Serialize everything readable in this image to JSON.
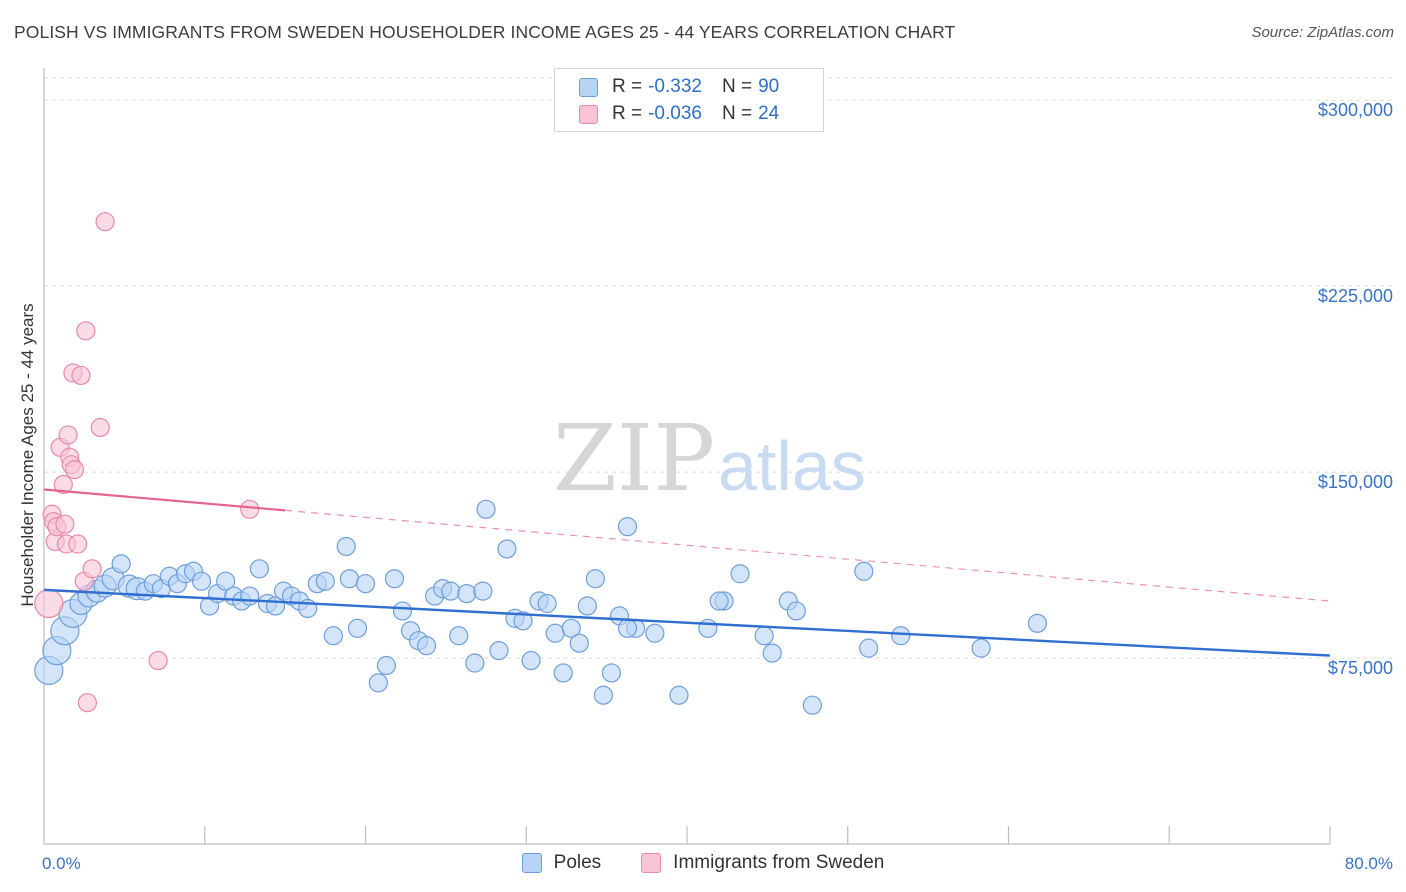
{
  "title": "POLISH VS IMMIGRANTS FROM SWEDEN HOUSEHOLDER INCOME AGES 25 - 44 YEARS CORRELATION CHART",
  "source": "Source: ZipAtlas.com",
  "watermark": {
    "zip": "ZIP",
    "atlas": "atlas"
  },
  "legend": {
    "rows": [
      {
        "r_label": "R =",
        "r_value": "-0.332",
        "n_label": "N =",
        "n_value": "90"
      },
      {
        "r_label": "R =",
        "r_value": "-0.036",
        "n_label": "N =",
        "n_value": "24"
      }
    ]
  },
  "colors": {
    "poles_fill": "#b7d3f5",
    "poles_stroke": "#6f9fdb",
    "poles_line": "#2f6fcf",
    "sweden_fill": "#f9c4d6",
    "sweden_stroke": "#e88aaa",
    "sweden_line": "#e3648e"
  },
  "chart_data": {
    "type": "scatter",
    "title": "POLISH VS IMMIGRANTS FROM SWEDEN HOUSEHOLDER INCOME AGES 25 - 44 YEARS CORRELATION CHART",
    "xlabel": "",
    "ylabel": "Householder Income Ages 25 - 44 years",
    "xlim": [
      0,
      80
    ],
    "ylim": [
      0,
      313000
    ],
    "x_tick_labels": [
      "0.0%",
      "80.0%"
    ],
    "y_ticks": [
      75000,
      150000,
      225000,
      300000
    ],
    "y_tick_labels": [
      "$75,000",
      "$150,000",
      "$225,000",
      "$300,000"
    ],
    "grid": true,
    "legend_position": "bottom-center",
    "series": [
      {
        "name": "Poles",
        "R": -0.332,
        "N": 90,
        "trend": {
          "x": [
            0,
            80
          ],
          "y": [
            102500,
            76000
          ]
        },
        "points": [
          [
            0.3,
            70000,
            2
          ],
          [
            0.8,
            78000,
            2
          ],
          [
            1.3,
            86000,
            2
          ],
          [
            1.8,
            93000,
            2
          ],
          [
            2.3,
            97000,
            1
          ],
          [
            2.8,
            100000,
            1
          ],
          [
            3.3,
            102000,
            1
          ],
          [
            3.8,
            104000,
            1
          ],
          [
            4.3,
            107000,
            1
          ],
          [
            4.8,
            113000,
            0
          ],
          [
            5.3,
            104000,
            1
          ],
          [
            5.8,
            103000,
            1
          ],
          [
            6.3,
            102000,
            0
          ],
          [
            6.8,
            105000,
            0
          ],
          [
            7.3,
            103000,
            0
          ],
          [
            7.8,
            108000,
            0
          ],
          [
            8.3,
            105000,
            0
          ],
          [
            8.8,
            109000,
            0
          ],
          [
            9.3,
            110000,
            0
          ],
          [
            9.8,
            106000,
            0
          ],
          [
            10.3,
            96000,
            0
          ],
          [
            10.8,
            101000,
            0
          ],
          [
            11.3,
            106000,
            0
          ],
          [
            11.8,
            100000,
            0
          ],
          [
            12.3,
            98000,
            0
          ],
          [
            12.8,
            100000,
            0
          ],
          [
            13.4,
            111000,
            0
          ],
          [
            13.9,
            97000,
            0
          ],
          [
            14.4,
            96000,
            0
          ],
          [
            14.9,
            102000,
            0
          ],
          [
            15.4,
            100000,
            0
          ],
          [
            15.9,
            98000,
            0
          ],
          [
            16.4,
            95000,
            0
          ],
          [
            17.0,
            105000,
            0
          ],
          [
            17.5,
            106000,
            0
          ],
          [
            18.0,
            84000,
            0
          ],
          [
            18.8,
            120000,
            0
          ],
          [
            19.0,
            107000,
            0
          ],
          [
            19.5,
            87000,
            0
          ],
          [
            20.0,
            105000,
            0
          ],
          [
            20.8,
            65000,
            0
          ],
          [
            21.3,
            72000,
            0
          ],
          [
            21.8,
            107000,
            0
          ],
          [
            22.3,
            94000,
            0
          ],
          [
            22.8,
            86000,
            0
          ],
          [
            23.3,
            82000,
            0
          ],
          [
            23.8,
            80000,
            0
          ],
          [
            24.3,
            100000,
            0
          ],
          [
            24.8,
            103000,
            0
          ],
          [
            25.3,
            102000,
            0
          ],
          [
            25.8,
            84000,
            0
          ],
          [
            26.3,
            101000,
            0
          ],
          [
            26.8,
            73000,
            0
          ],
          [
            27.3,
            102000,
            0
          ],
          [
            27.5,
            135000,
            0
          ],
          [
            28.3,
            78000,
            0
          ],
          [
            28.8,
            119000,
            0
          ],
          [
            29.3,
            91000,
            0
          ],
          [
            29.8,
            90000,
            0
          ],
          [
            30.3,
            74000,
            0
          ],
          [
            30.8,
            98000,
            0
          ],
          [
            31.3,
            97000,
            0
          ],
          [
            31.8,
            85000,
            0
          ],
          [
            32.3,
            69000,
            0
          ],
          [
            32.8,
            87000,
            0
          ],
          [
            33.3,
            81000,
            0
          ],
          [
            33.8,
            96000,
            0
          ],
          [
            34.3,
            107000,
            0
          ],
          [
            34.8,
            60000,
            0
          ],
          [
            35.3,
            69000,
            0
          ],
          [
            35.8,
            92000,
            0
          ],
          [
            36.3,
            128000,
            0
          ],
          [
            36.8,
            87000,
            0
          ],
          [
            38.0,
            85000,
            0
          ],
          [
            39.5,
            60000,
            0
          ],
          [
            41.3,
            87000,
            0
          ],
          [
            42.3,
            98000,
            0
          ],
          [
            43.3,
            109000,
            0
          ],
          [
            44.8,
            84000,
            0
          ],
          [
            45.3,
            77000,
            0
          ],
          [
            46.3,
            98000,
            0
          ],
          [
            46.8,
            94000,
            0
          ],
          [
            47.8,
            56000,
            0
          ],
          [
            51.0,
            110000,
            0
          ],
          [
            51.3,
            79000,
            0
          ],
          [
            53.3,
            84000,
            0
          ],
          [
            58.3,
            79000,
            0
          ],
          [
            61.8,
            89000,
            0
          ],
          [
            42.0,
            98000,
            0
          ],
          [
            36.3,
            87000,
            0
          ]
        ]
      },
      {
        "name": "Immigrants from Sweden",
        "R": -0.036,
        "N": 24,
        "trend": {
          "x": [
            0,
            80
          ],
          "y": [
            143000,
            98000
          ]
        },
        "trend_solid_to_x": 15,
        "points": [
          [
            0.3,
            97000,
            2
          ],
          [
            0.5,
            133000,
            0
          ],
          [
            0.6,
            130000,
            0
          ],
          [
            0.7,
            122000,
            0
          ],
          [
            0.8,
            128000,
            0
          ],
          [
            1.0,
            160000,
            0
          ],
          [
            1.2,
            145000,
            0
          ],
          [
            1.3,
            129000,
            0
          ],
          [
            1.4,
            121000,
            0
          ],
          [
            1.5,
            165000,
            0
          ],
          [
            1.6,
            156000,
            0
          ],
          [
            1.7,
            153000,
            0
          ],
          [
            1.8,
            190000,
            0
          ],
          [
            1.9,
            151000,
            0
          ],
          [
            2.1,
            121000,
            0
          ],
          [
            2.3,
            189000,
            0
          ],
          [
            2.5,
            106000,
            0
          ],
          [
            2.6,
            207000,
            0
          ],
          [
            2.7,
            57000,
            0
          ],
          [
            3.0,
            111000,
            0
          ],
          [
            3.5,
            168000,
            0
          ],
          [
            3.8,
            251000,
            0
          ],
          [
            7.1,
            74000,
            0
          ],
          [
            12.8,
            135000,
            0
          ]
        ]
      }
    ]
  }
}
